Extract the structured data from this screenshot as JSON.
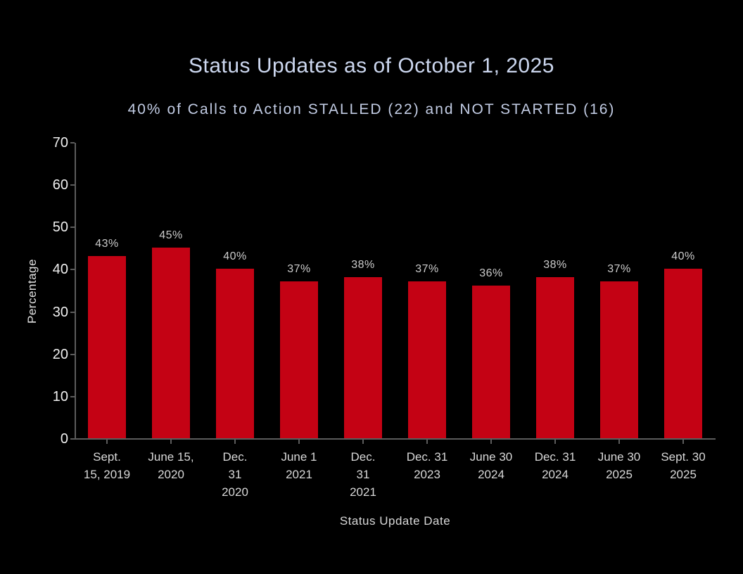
{
  "header": {
    "title": "Status Updates as of October 1, 2025",
    "subtitle": "40% of Calls to Action STALLED (22) and NOT STARTED (16)"
  },
  "chart_data": {
    "type": "bar",
    "title": "Status Updates as of October 1, 2025",
    "subtitle": "40% of Calls to Action STALLED (22) and NOT STARTED (16)",
    "categories": [
      "Sept.\n15, 2019",
      "June 15,\n2020",
      "Dec.\n31\n2020",
      "June 1\n2021",
      "Dec.\n31\n2021",
      "Dec. 31\n2023",
      "June 30\n2024",
      "Dec. 31\n2024",
      "June 30\n2025",
      "Sept. 30\n2025"
    ],
    "values": [
      43,
      45,
      40,
      37,
      38,
      37,
      36,
      38,
      37,
      40
    ],
    "value_labels": [
      "43%",
      "45%",
      "40%",
      "37%",
      "38%",
      "37%",
      "36%",
      "38%",
      "37%",
      "40%"
    ],
    "xlabel": "Status Update Date",
    "ylabel": "Percentage",
    "ylim": [
      0,
      70
    ],
    "yticks": [
      0,
      10,
      20,
      30,
      40,
      50,
      60,
      70
    ],
    "grid": false,
    "legend": "none",
    "colors": {
      "background": "#000000",
      "bar": "#c40214",
      "title": "#ccd7ef",
      "subtitle": "#c2cce4",
      "axis_line": "#5c5c5c",
      "y_tick_label": "#f0f0f0",
      "x_tick_label": "#d9d9d9",
      "value_label": "#cbcbcb"
    }
  }
}
